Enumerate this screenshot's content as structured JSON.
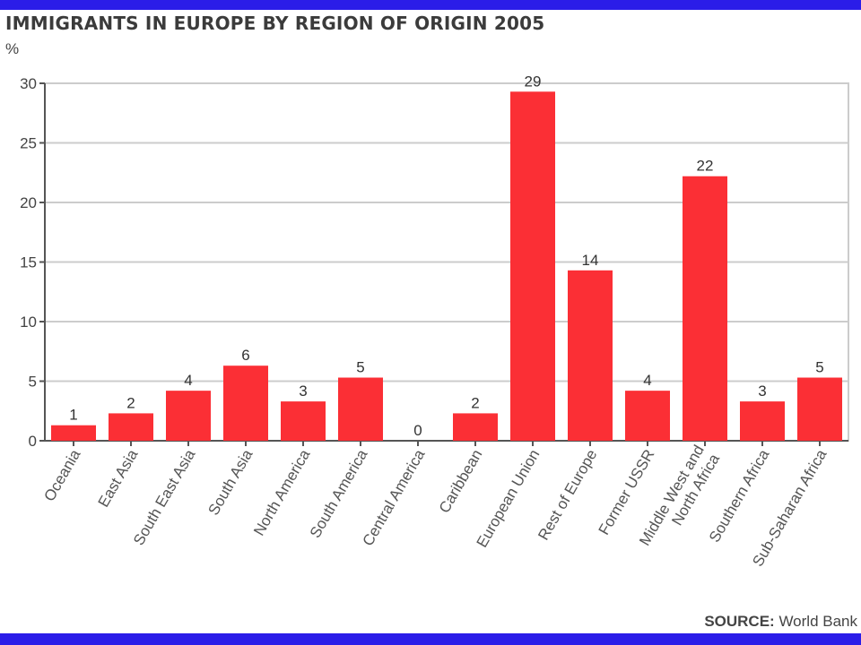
{
  "chart_data": {
    "type": "bar",
    "title": "IMMIGRANTS IN EUROPE BY REGION OF ORIGIN 2005",
    "ylabel": "%",
    "xlabel": "",
    "ylim": [
      0,
      30
    ],
    "yticks": [
      0,
      5,
      10,
      15,
      20,
      25,
      30
    ],
    "grid": true,
    "categories": [
      "Oceania",
      "East Asia",
      "South East Asia",
      "South Asia",
      "North America",
      "South America",
      "Central America",
      "Caribbean",
      "European Union",
      "Rest of Europe",
      "Former USSR",
      "Middle West and North Africa",
      "Southern Africa",
      "Sub-Saharan Africa"
    ],
    "category_label_lines": [
      [
        "Oceania"
      ],
      [
        "East Asia"
      ],
      [
        "South East Asia"
      ],
      [
        "South Asia"
      ],
      [
        "North America"
      ],
      [
        "South America"
      ],
      [
        "Central America"
      ],
      [
        "Caribbean"
      ],
      [
        "European Union"
      ],
      [
        "Rest of Europe"
      ],
      [
        "Former USSR"
      ],
      [
        "Middle West and",
        "North Africa"
      ],
      [
        "Southern Africa"
      ],
      [
        "Sub-Saharan Africa"
      ]
    ],
    "values": [
      1.3,
      2.3,
      4.2,
      6.3,
      3.3,
      5.3,
      0,
      2.3,
      29.3,
      14.3,
      4.2,
      22.2,
      3.3,
      5.3
    ],
    "data_labels": [
      "1",
      "2",
      "4",
      "6",
      "3",
      "5",
      "0",
      "2",
      "29",
      "14",
      "4",
      "22",
      "3",
      "5"
    ],
    "bar_color": "#fb2f35",
    "source_key": "SOURCE:",
    "source_value": " World Bank"
  },
  "colors": {
    "band": "#2b1de8",
    "grid": "#cccccc",
    "axis": "#555555"
  }
}
